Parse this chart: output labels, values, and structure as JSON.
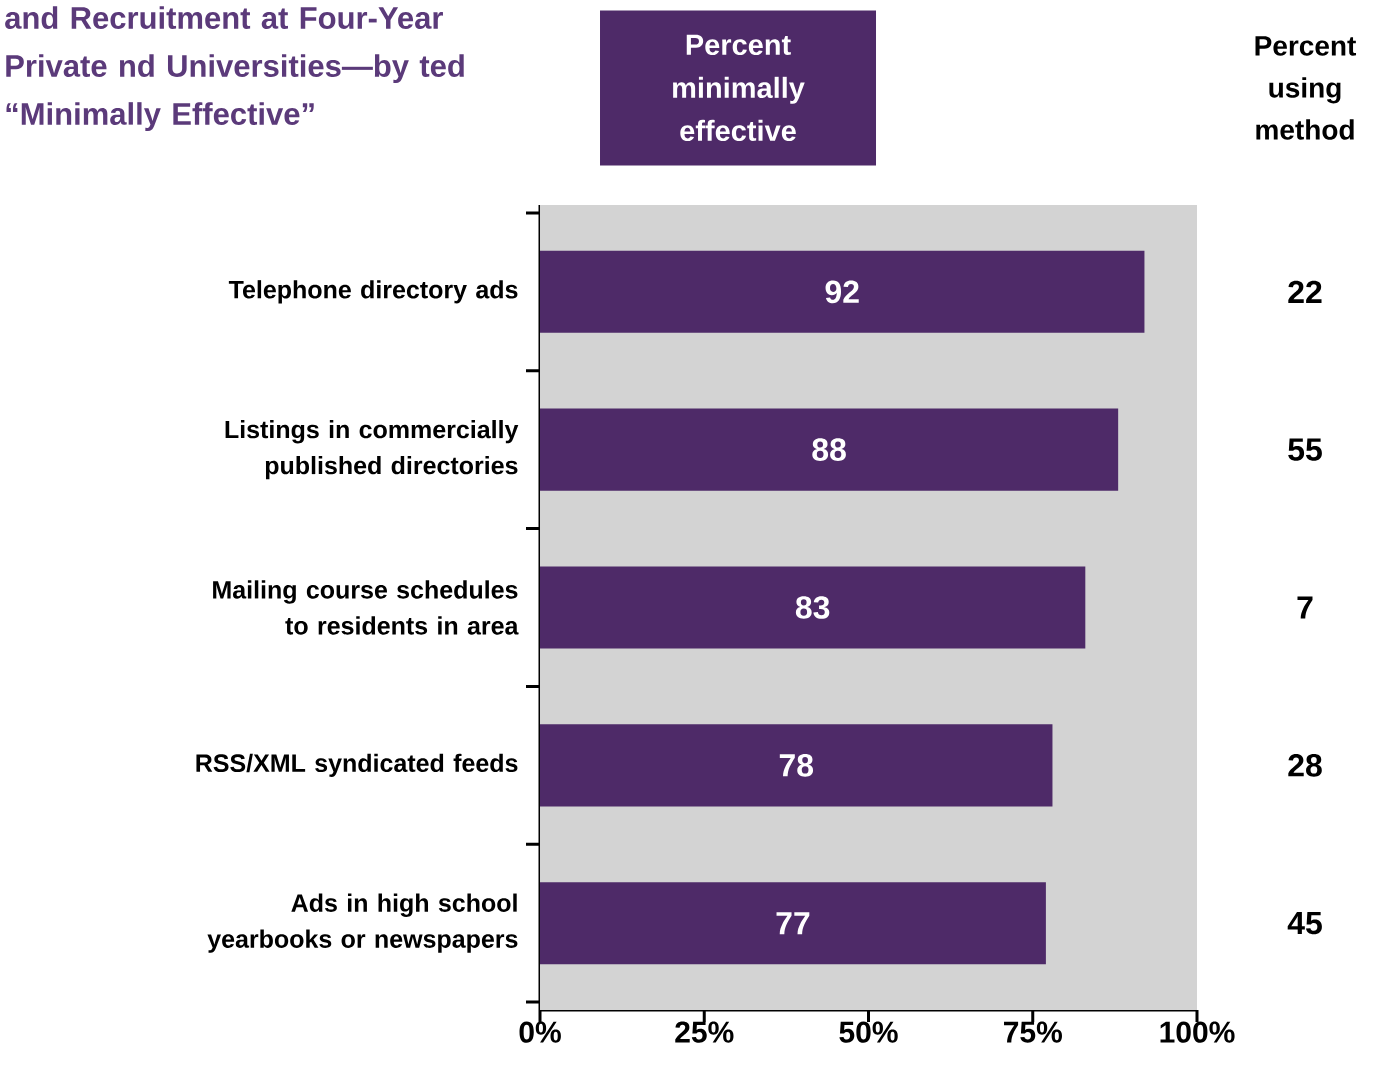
{
  "chart_data": {
    "type": "bar",
    "orientation": "horizontal",
    "title": "and Recruitment at Four-Year Private nd Universities—by ted “Minimally Effective”",
    "categories": [
      "Telephone directory ads",
      "Listings in commercially published directories",
      "Mailing course schedules to residents in area",
      "RSS/XML syndicated feeds",
      "Ads in high school yearbooks or newspapers"
    ],
    "series": [
      {
        "name": "Percent minimally effective",
        "color": "#4e2a68",
        "values": [
          92,
          88,
          83,
          78,
          77
        ]
      }
    ],
    "data_labels": true,
    "legend": "top",
    "xlim": [
      0,
      100
    ],
    "xticks": [
      {
        "value": 0,
        "label": "0%"
      },
      {
        "value": 25,
        "label": "25%"
      },
      {
        "value": 50,
        "label": "50%"
      },
      {
        "value": 75,
        "label": "75%"
      },
      {
        "value": 100,
        "label": "100%"
      }
    ],
    "annotations": [
      "Percent using method",
      "22",
      "55",
      "7",
      "28",
      "45"
    ]
  }
}
